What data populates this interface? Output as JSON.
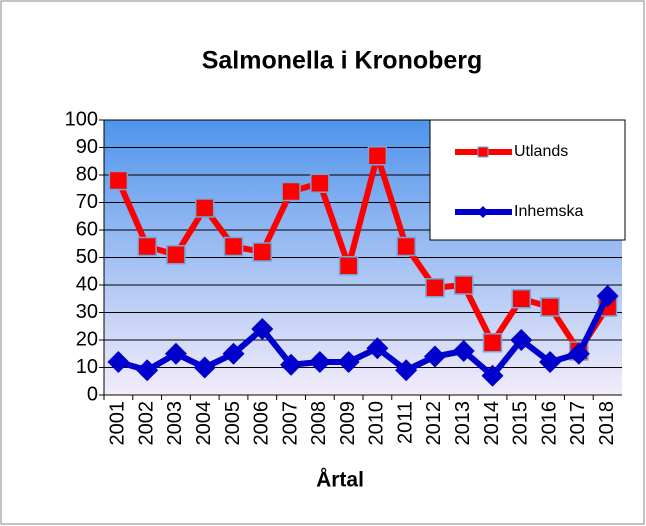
{
  "chart_data": {
    "type": "line",
    "title": "Salmonella i Kronoberg",
    "x_label": "Årtal",
    "categories": [
      "2001",
      "2002",
      "2003",
      "2004",
      "2005",
      "2006",
      "2007",
      "2008",
      "2009",
      "2010",
      "2011",
      "2012",
      "2013",
      "2014",
      "2015",
      "2016",
      "2017",
      "2018"
    ],
    "series": [
      {
        "name": "Utlands",
        "color": "#ff0000",
        "marker": "square",
        "values": [
          78,
          54,
          51,
          68,
          54,
          52,
          74,
          77,
          47,
          87,
          54,
          39,
          40,
          19,
          35,
          32,
          16,
          32
        ]
      },
      {
        "name": "Inhemska",
        "color": "#0000cc",
        "marker": "diamond",
        "values": [
          12,
          9,
          15,
          10,
          15,
          24,
          11,
          12,
          12,
          17,
          9,
          14,
          16,
          7,
          20,
          12,
          15,
          36
        ]
      }
    ],
    "ylim": [
      0,
      100
    ],
    "yticks": [
      0,
      10,
      20,
      30,
      40,
      50,
      60,
      70,
      80,
      90,
      100
    ],
    "grid": true,
    "legend": "upper right"
  }
}
